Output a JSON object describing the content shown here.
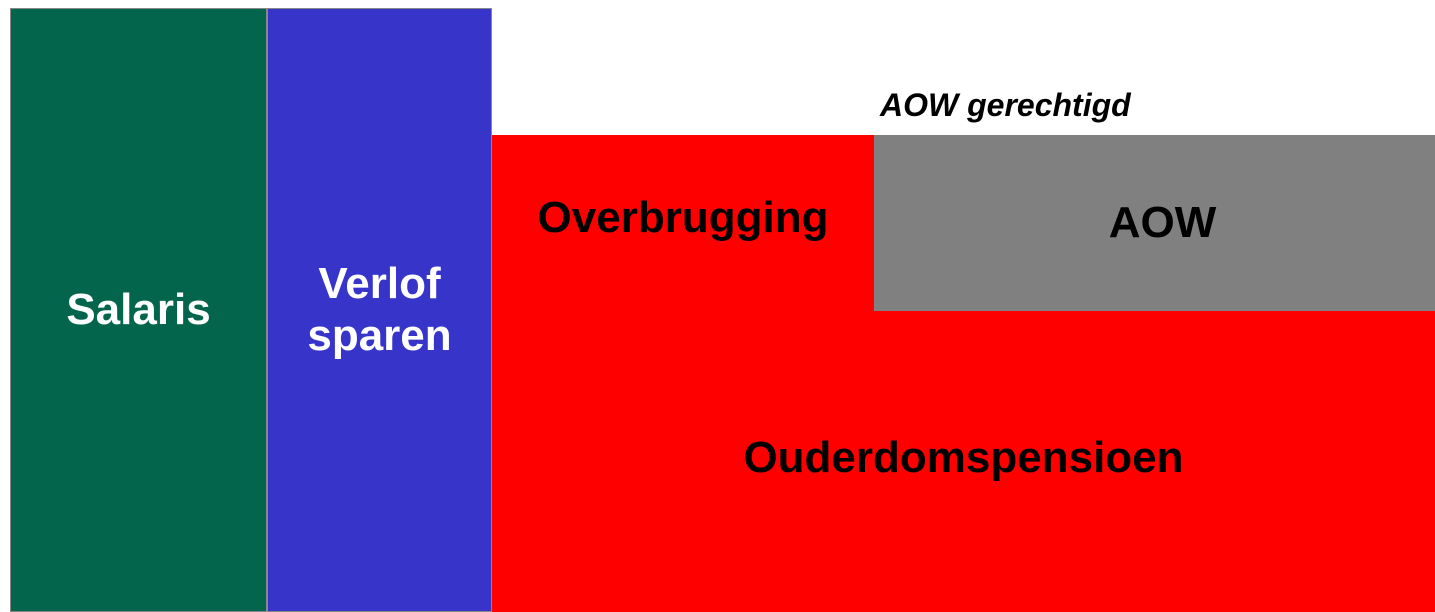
{
  "blocks": {
    "salaris": "Salaris",
    "verlof": [
      "Verlof",
      "sparen"
    ],
    "aow_label": "AOW gerechtigd",
    "overbrugging": "Overbrugging",
    "aow": "AOW",
    "ouderdomspensioen": "Ouderdomspensioen"
  }
}
